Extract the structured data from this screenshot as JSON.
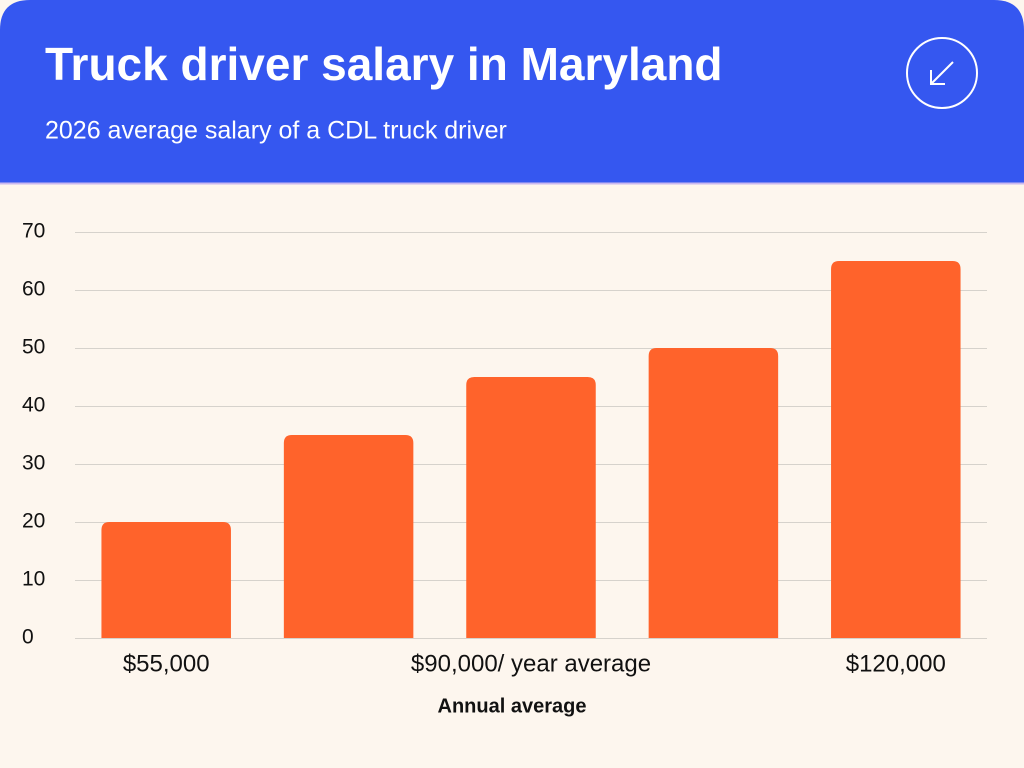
{
  "chart_data": {
    "type": "bar",
    "title": "Truck driver salary in Maryland",
    "subtitle": "2026 average salary of a CDL truck driver",
    "x_label": "Annual average",
    "categories": [
      "$55,000",
      null,
      "$90,000/ year average",
      null,
      "$120,000"
    ],
    "values": [
      20,
      35,
      45,
      50,
      65
    ],
    "color": "#ff632b",
    "ylim": [
      0,
      70
    ],
    "yticks": [
      0,
      10,
      20,
      30,
      40,
      50,
      60,
      70
    ],
    "grid": true
  }
}
